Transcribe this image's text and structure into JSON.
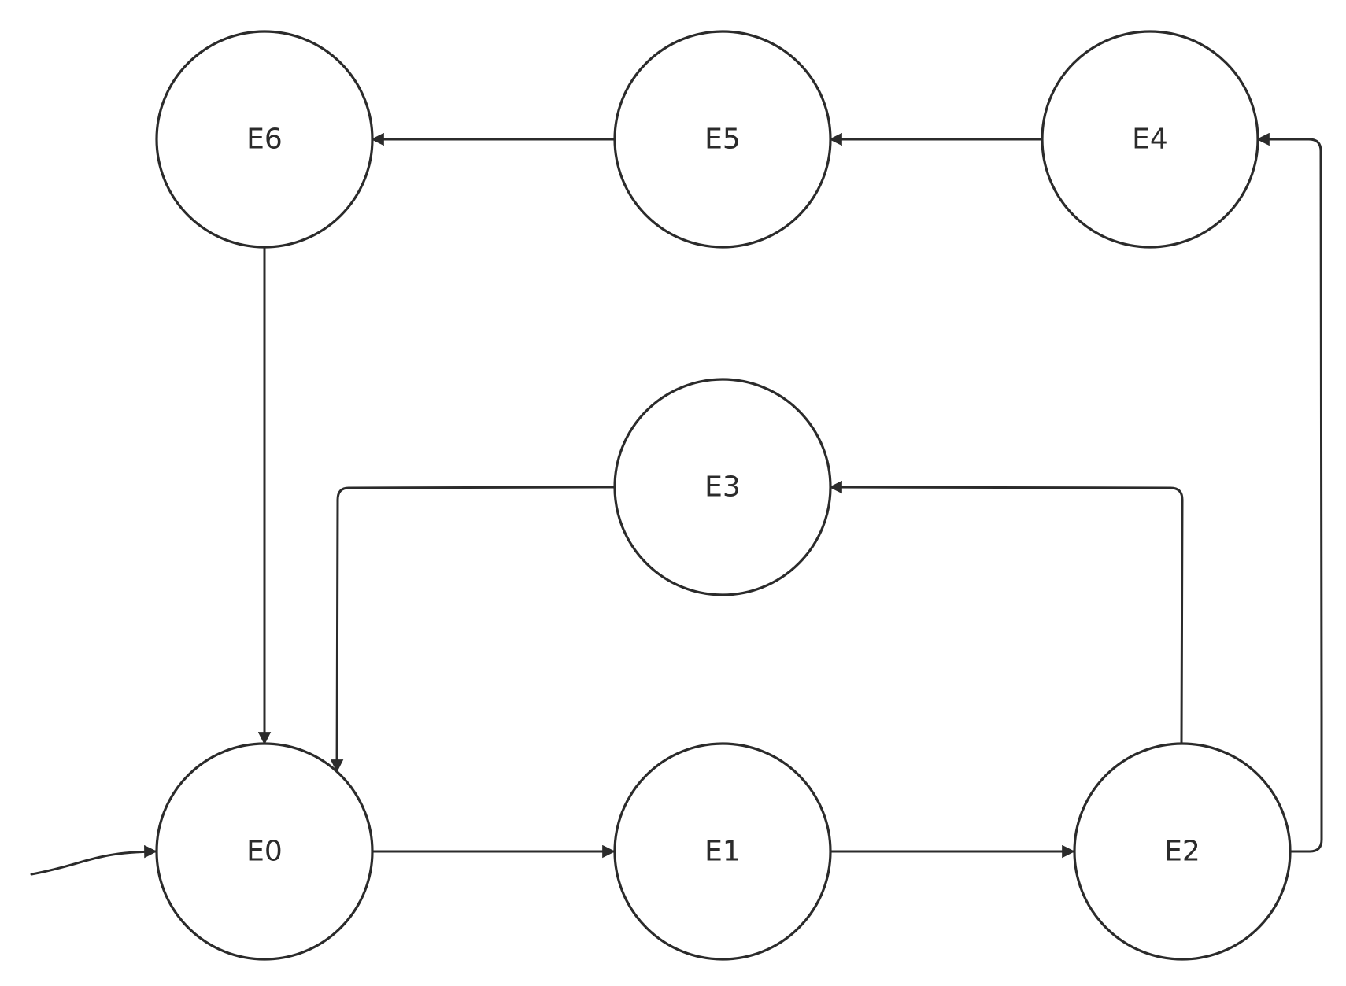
{
  "colors": {
    "stroke": "#2b2b2b",
    "node_fill": "#ffffff",
    "text": "#2b2b2b",
    "background": "#ffffff"
  },
  "diagram": {
    "type": "state-transition-diagram",
    "initial_state": "E0",
    "nodes": [
      {
        "id": "E0",
        "label": "E0"
      },
      {
        "id": "E1",
        "label": "E1"
      },
      {
        "id": "E2",
        "label": "E2"
      },
      {
        "id": "E3",
        "label": "E3"
      },
      {
        "id": "E4",
        "label": "E4"
      },
      {
        "id": "E5",
        "label": "E5"
      },
      {
        "id": "E6",
        "label": "E6"
      }
    ],
    "edges": [
      {
        "id": "start",
        "from": null,
        "to": "E0"
      },
      {
        "id": "E0-E1",
        "from": "E0",
        "to": "E1"
      },
      {
        "id": "E1-E2",
        "from": "E1",
        "to": "E2"
      },
      {
        "id": "E2-E3",
        "from": "E2",
        "to": "E3"
      },
      {
        "id": "E2-E4",
        "from": "E2",
        "to": "E4"
      },
      {
        "id": "E4-E5",
        "from": "E4",
        "to": "E5"
      },
      {
        "id": "E5-E6",
        "from": "E5",
        "to": "E6"
      },
      {
        "id": "E6-E0",
        "from": "E6",
        "to": "E0"
      },
      {
        "id": "E3-E0",
        "from": "E3",
        "to": "E0"
      }
    ]
  }
}
